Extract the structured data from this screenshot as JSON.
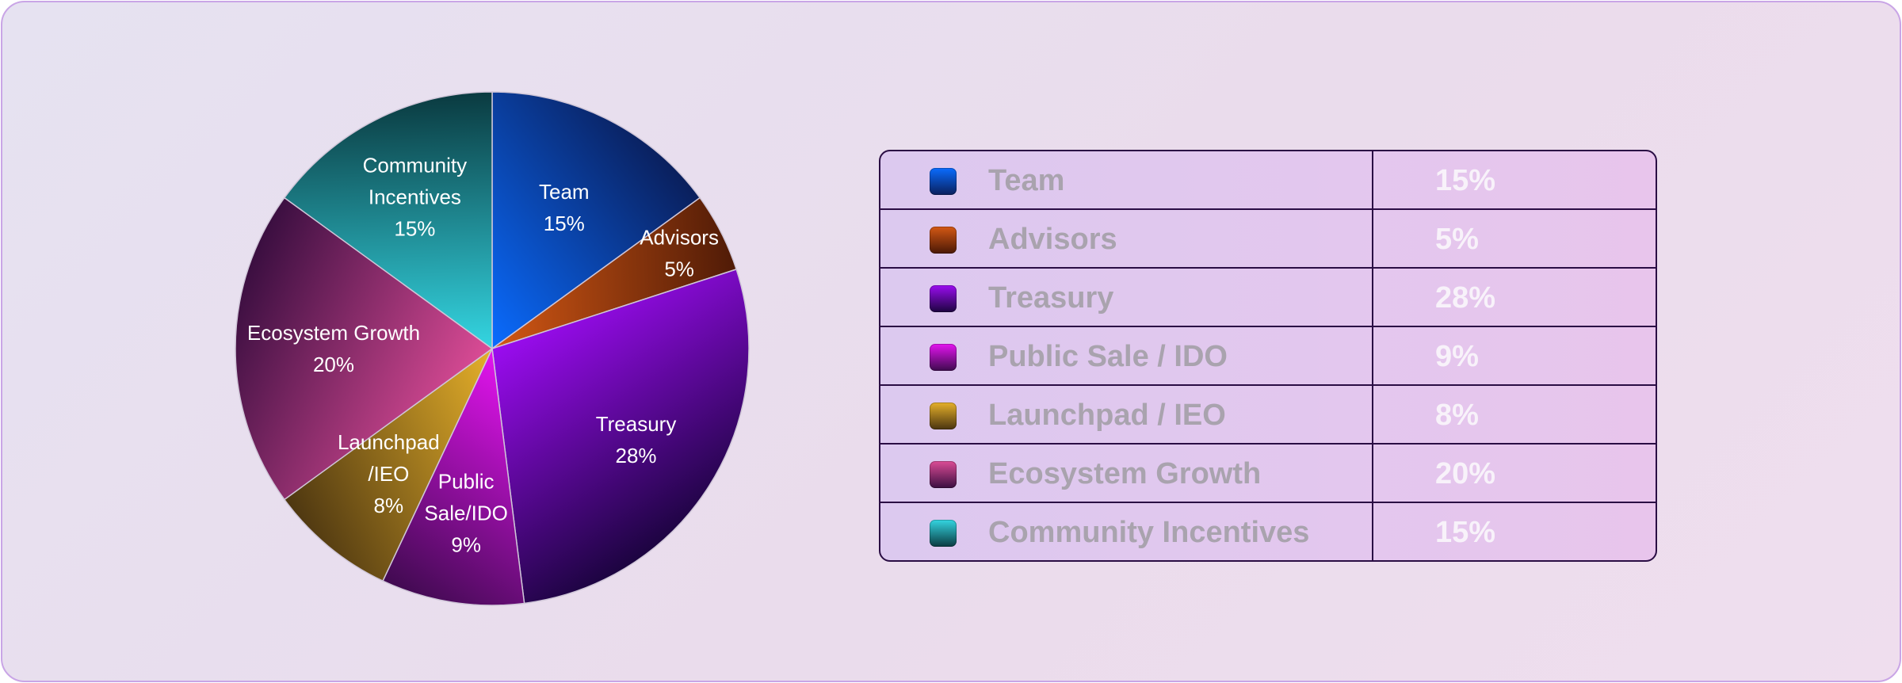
{
  "chart_data": {
    "type": "pie",
    "slices": [
      {
        "label_lines": [
          "Team",
          "15%"
        ],
        "name": "Team",
        "value": 15,
        "display": "15%",
        "color_light": "#0a6cff",
        "color_dark": "#0a1f5c"
      },
      {
        "label_lines": [
          "Advisors",
          "5%"
        ],
        "name": "Advisors",
        "value": 5,
        "display": "5%",
        "color_light": "#d45814",
        "color_dark": "#4a1806"
      },
      {
        "label_lines": [
          "Treasury",
          "28%"
        ],
        "name": "Treasury",
        "value": 28,
        "display": "28%",
        "color_light": "#9b0cf0",
        "color_dark": "#1c0440"
      },
      {
        "label_lines": [
          "Public",
          "Sale/IDO",
          "9%"
        ],
        "name": "Public Sale / IDO",
        "value": 9,
        "display": "9%",
        "color_light": "#e414f0",
        "color_dark": "#3e0a4e"
      },
      {
        "label_lines": [
          "Launchpad",
          "/IEO",
          "8%"
        ],
        "name": "Launchpad / IEO",
        "value": 8,
        "display": "8%",
        "color_light": "#e6b02a",
        "color_dark": "#4a3410"
      },
      {
        "label_lines": [
          "Ecosystem Growth",
          "20%"
        ],
        "name": "Ecosystem Growth",
        "value": 20,
        "display": "20%",
        "color_light": "#dc4c96",
        "color_dark": "#3a0e40"
      },
      {
        "label_lines": [
          "Community",
          "Incentives",
          "15%"
        ],
        "name": "Community Incentives",
        "value": 15,
        "display": "15%",
        "color_light": "#34d6e2",
        "color_dark": "#0a3a40"
      }
    ]
  }
}
